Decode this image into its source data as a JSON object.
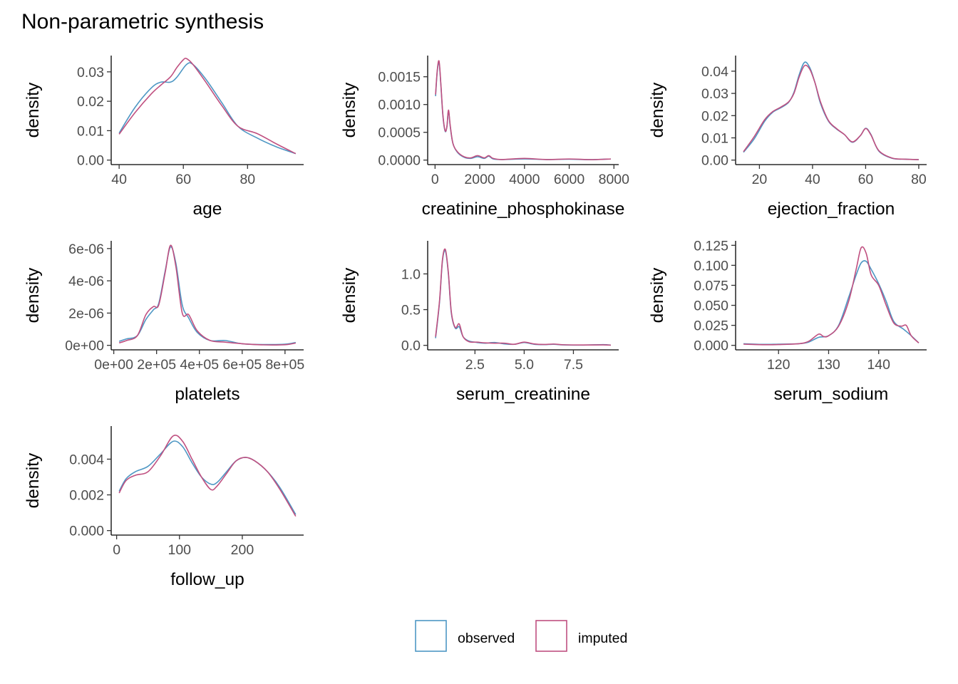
{
  "colors": {
    "observed": "#4e97c4",
    "imputed": "#c05080"
  },
  "chart_data": {
    "type": "line",
    "title": "Non-parametric synthesis",
    "legend": {
      "placement": "bottom",
      "entries": [
        "observed",
        "imputed"
      ]
    },
    "grid": false,
    "panels": [
      {
        "id": "age",
        "xlabel": "age",
        "ylabel": "density",
        "xlim": [
          40,
          95
        ],
        "ylim": [
          0,
          0.034
        ],
        "xticks": [
          40,
          60,
          80
        ],
        "xtick_labels": [
          "40",
          "60",
          "80"
        ],
        "yticks": [
          0,
          0.01,
          0.02,
          0.03
        ],
        "ytick_labels": [
          "0.00",
          "0.01",
          "0.02",
          "0.03"
        ],
        "series": [
          {
            "name": "observed",
            "x": [
              40,
              45,
              50,
              53,
              56,
              58,
              61,
              63,
              67,
              72,
              77,
              83,
              89,
              95
            ],
            "y": [
              0.0092,
              0.018,
              0.0245,
              0.0265,
              0.0265,
              0.0282,
              0.0325,
              0.0325,
              0.0275,
              0.0195,
              0.0115,
              0.0075,
              0.0045,
              0.0022
            ]
          },
          {
            "name": "imputed",
            "x": [
              40,
              45,
              50,
              53,
              56,
              58,
              60,
              61,
              63,
              67,
              72,
              77,
              83,
              89,
              95
            ],
            "y": [
              0.0088,
              0.0162,
              0.0225,
              0.0255,
              0.0283,
              0.0315,
              0.0341,
              0.0345,
              0.0325,
              0.0265,
              0.0185,
              0.0115,
              0.009,
              0.0055,
              0.0022
            ]
          }
        ]
      },
      {
        "id": "creatinine_phosphokinase",
        "xlabel": "creatinine_phosphokinase",
        "ylabel": "density",
        "xlim": [
          23,
          7861
        ],
        "ylim": [
          0,
          0.0018
        ],
        "xticks": [
          0,
          2000,
          4000,
          6000,
          8000
        ],
        "xtick_labels": [
          "0",
          "2000",
          "4000",
          "6000",
          "8000"
        ],
        "yticks": [
          0,
          0.0005,
          0.001,
          0.0015
        ],
        "ytick_labels": [
          "0.0000",
          "0.0005",
          "0.0010",
          "0.0015"
        ],
        "series": [
          {
            "name": "observed",
            "x": [
              23,
              100,
              180,
              260,
              350,
              450,
              530,
              600,
              680,
              800,
              1000,
              1300,
              1600,
              1900,
              2200,
              2400,
              2600,
              3000,
              4000,
              5000,
              6000,
              7000,
              7861
            ],
            "y": [
              0.00115,
              0.0016,
              0.00175,
              0.00135,
              0.0008,
              0.00052,
              0.0006,
              0.00088,
              0.0006,
              0.0003,
              0.00014,
              5e-05,
              3e-05,
              6e-05,
              3e-05,
              7e-05,
              2e-05,
              1e-05,
              2e-05,
              1e-05,
              1.5e-05,
              8e-06,
              2e-05
            ]
          },
          {
            "name": "imputed",
            "x": [
              23,
              100,
              180,
              260,
              350,
              450,
              530,
              600,
              680,
              800,
              1000,
              1300,
              1600,
              1900,
              2200,
              2400,
              2600,
              3000,
              4000,
              5000,
              6000,
              7000,
              7861
            ],
            "y": [
              0.00118,
              0.00162,
              0.00178,
              0.00137,
              0.00082,
              0.00053,
              0.0006,
              0.0009,
              0.00062,
              0.0003,
              0.00015,
              6e-05,
              4e-05,
              8e-05,
              4e-05,
              8e-05,
              3e-05,
              1e-05,
              3e-05,
              1e-05,
              2e-05,
              8e-06,
              2e-05
            ]
          }
        ]
      },
      {
        "id": "ejection_fraction",
        "xlabel": "ejection_fraction",
        "ylabel": "density",
        "xlim": [
          14,
          80
        ],
        "ylim": [
          0,
          0.045
        ],
        "xticks": [
          20,
          40,
          60,
          80
        ],
        "xtick_labels": [
          "20",
          "40",
          "60",
          "80"
        ],
        "yticks": [
          0,
          0.01,
          0.02,
          0.03,
          0.04
        ],
        "ytick_labels": [
          "0.00",
          "0.01",
          "0.02",
          "0.03",
          "0.04"
        ],
        "series": [
          {
            "name": "observed",
            "x": [
              14,
              18,
              22,
              25,
              28,
              31,
              33,
              35,
              37,
              39,
              41,
              43,
              46,
              49,
              52,
              55,
              58,
              60,
              62,
              65,
              70,
              75,
              80
            ],
            "y": [
              0.0035,
              0.0095,
              0.0175,
              0.0215,
              0.0235,
              0.026,
              0.0305,
              0.0385,
              0.044,
              0.0415,
              0.0345,
              0.0255,
              0.0175,
              0.014,
              0.0115,
              0.008,
              0.011,
              0.0143,
              0.0115,
              0.004,
              0.0008,
              0.0004,
              0.0002
            ]
          },
          {
            "name": "imputed",
            "x": [
              14,
              18,
              22,
              25,
              28,
              31,
              33,
              35,
              37,
              39,
              41,
              43,
              46,
              49,
              52,
              55,
              58,
              60,
              62,
              65,
              70,
              75,
              80
            ],
            "y": [
              0.0038,
              0.0105,
              0.0182,
              0.0218,
              0.0238,
              0.0262,
              0.03,
              0.0375,
              0.0425,
              0.0408,
              0.0345,
              0.0262,
              0.0178,
              0.0142,
              0.0115,
              0.0082,
              0.011,
              0.0142,
              0.0113,
              0.0042,
              0.0009,
              0.0004,
              0.0002
            ]
          }
        ]
      },
      {
        "id": "platelets",
        "xlabel": "platelets",
        "ylabel": "density",
        "xlim": [
          25100,
          850000
        ],
        "ylim": [
          0,
          6.2e-06
        ],
        "xticks": [
          0,
          200000,
          400000,
          600000,
          800000
        ],
        "xtick_labels": [
          "0e+00",
          "2e+05",
          "4e+05",
          "6e+05",
          "8e+05"
        ],
        "yticks": [
          0,
          2e-06,
          4e-06,
          6e-06
        ],
        "ytick_labels": [
          "0e+00",
          "2e-06",
          "4e-06",
          "6e-06"
        ],
        "series": [
          {
            "name": "observed",
            "x": [
              25100,
              60000,
              110000,
              150000,
              185000,
              210000,
              240000,
              265000,
              290000,
              320000,
              350000,
              390000,
              450000,
              520000,
              600000,
              700000,
              800000,
              850000
            ],
            "y": [
              2.5e-07,
              4e-07,
              6e-07,
              1.6e-06,
              2.2e-06,
              2.6e-06,
              4.6e-06,
              6.1e-06,
              5.1e-06,
              2.5e-06,
              1.7e-06,
              8e-07,
              3e-07,
              3e-07,
              1e-07,
              5e-08,
              7e-08,
              1.8e-07
            ]
          },
          {
            "name": "imputed",
            "x": [
              25100,
              60000,
              110000,
              150000,
              185000,
              210000,
              240000,
              265000,
              290000,
              320000,
              350000,
              390000,
              450000,
              520000,
              600000,
              700000,
              800000,
              850000
            ],
            "y": [
              1.5e-07,
              3e-07,
              6e-07,
              1.9e-06,
              2.4e-06,
              2.5e-06,
              4.5e-06,
              6.2e-06,
              4.9e-06,
              2e-06,
              1.9e-06,
              9e-07,
              3e-07,
              2e-07,
              1e-07,
              3e-08,
              4e-08,
              1.4e-07
            ]
          }
        ]
      },
      {
        "id": "serum_creatinine",
        "xlabel": "serum_creatinine",
        "ylabel": "density",
        "xlim": [
          0.5,
          9.4
        ],
        "ylim": [
          0,
          1.4
        ],
        "xticks": [
          2.5,
          5.0,
          7.5
        ],
        "xtick_labels": [
          "2.5",
          "5.0",
          "7.5"
        ],
        "yticks": [
          0,
          0.5,
          1.0
        ],
        "ytick_labels": [
          "0.0",
          "0.5",
          "1.0"
        ],
        "series": [
          {
            "name": "observed",
            "x": [
              0.5,
              0.7,
              0.85,
              1.0,
              1.15,
              1.3,
              1.5,
              1.7,
              1.9,
              2.2,
              2.6,
              3.0,
              3.5,
              4.0,
              4.5,
              5.0,
              5.5,
              6.0,
              6.5,
              7.0,
              8.0,
              9.0,
              9.4
            ],
            "y": [
              0.1,
              0.6,
              1.18,
              1.32,
              1.0,
              0.45,
              0.24,
              0.26,
              0.12,
              0.06,
              0.04,
              0.03,
              0.04,
              0.02,
              0.015,
              0.04,
              0.015,
              0.01,
              0.015,
              0.006,
              0.004,
              0.01,
              0.004
            ]
          },
          {
            "name": "imputed",
            "x": [
              0.5,
              0.7,
              0.85,
              1.0,
              1.15,
              1.3,
              1.5,
              1.7,
              1.9,
              2.2,
              2.6,
              3.0,
              3.5,
              4.0,
              4.5,
              5.0,
              5.5,
              6.0,
              6.5,
              7.0,
              8.0,
              9.0,
              9.4
            ],
            "y": [
              0.12,
              0.62,
              1.2,
              1.34,
              1.02,
              0.47,
              0.25,
              0.3,
              0.12,
              0.05,
              0.045,
              0.035,
              0.03,
              0.03,
              0.015,
              0.045,
              0.02,
              0.012,
              0.018,
              0.008,
              0.005,
              0.006,
              0.002
            ]
          }
        ]
      },
      {
        "id": "serum_sodium",
        "xlabel": "serum_sodium",
        "ylabel": "density",
        "xlim": [
          113,
          148
        ],
        "ylim": [
          0,
          0.125
        ],
        "xticks": [
          120,
          130,
          140
        ],
        "xtick_labels": [
          "120",
          "130",
          "140"
        ],
        "yticks": [
          0,
          0.025,
          0.05,
          0.075,
          0.1,
          0.125
        ],
        "ytick_labels": [
          "0.000",
          "0.025",
          "0.050",
          "0.075",
          "0.100",
          "0.125"
        ],
        "series": [
          {
            "name": "observed",
            "x": [
              113,
              117,
              120,
              124,
              126,
              128,
              130,
              132,
              134,
              135.5,
              136.5,
              137.5,
              138.5,
              140,
              141.5,
              143,
              145,
              146.5,
              148
            ],
            "y": [
              0.002,
              0.0012,
              0.0015,
              0.002,
              0.004,
              0.01,
              0.012,
              0.025,
              0.06,
              0.088,
              0.103,
              0.105,
              0.095,
              0.077,
              0.055,
              0.03,
              0.02,
              0.012,
              0.003
            ]
          },
          {
            "name": "imputed",
            "x": [
              113,
              117,
              120,
              124,
              126,
              128,
              129,
              130,
              132,
              134,
              135.5,
              136.5,
              137.5,
              138.5,
              140,
              141.5,
              143,
              144.5,
              145.5,
              146.5,
              148
            ],
            "y": [
              0.0015,
              0.0008,
              0.001,
              0.002,
              0.005,
              0.014,
              0.011,
              0.012,
              0.024,
              0.055,
              0.095,
              0.122,
              0.115,
              0.088,
              0.075,
              0.05,
              0.028,
              0.024,
              0.025,
              0.012,
              0.003
            ]
          }
        ]
      },
      {
        "id": "follow_up",
        "xlabel": "follow_up",
        "ylabel": "density",
        "xlim": [
          4,
          285
        ],
        "ylim": [
          0,
          0.0056
        ],
        "xticks": [
          0,
          100,
          200
        ],
        "xtick_labels": [
          "0",
          "100",
          "200"
        ],
        "yticks": [
          0,
          0.002,
          0.004
        ],
        "ytick_labels": [
          "0.000",
          "0.002",
          "0.004"
        ],
        "series": [
          {
            "name": "observed",
            "x": [
              4,
              15,
              30,
              50,
              70,
              90,
              105,
              120,
              135,
              150,
              160,
              175,
              190,
              205,
              220,
              240,
              260,
              285
            ],
            "y": [
              0.0022,
              0.0029,
              0.0033,
              0.0036,
              0.0043,
              0.005,
              0.0047,
              0.0038,
              0.003,
              0.0026,
              0.0027,
              0.0033,
              0.0039,
              0.0041,
              0.0039,
              0.0033,
              0.0024,
              0.0009
            ]
          },
          {
            "name": "imputed",
            "x": [
              4,
              15,
              30,
              50,
              70,
              90,
              105,
              120,
              135,
              150,
              160,
              175,
              190,
              205,
              220,
              240,
              260,
              285
            ],
            "y": [
              0.0021,
              0.0028,
              0.0031,
              0.0033,
              0.0042,
              0.0053,
              0.005,
              0.004,
              0.003,
              0.0023,
              0.0025,
              0.0032,
              0.0039,
              0.0041,
              0.0039,
              0.0033,
              0.0023,
              0.0008
            ]
          }
        ]
      }
    ]
  }
}
